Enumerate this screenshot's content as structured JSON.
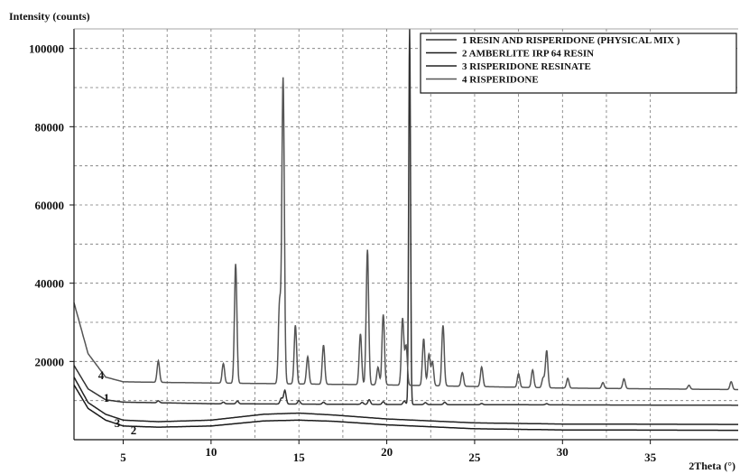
{
  "chart_data": {
    "type": "line",
    "ylabel": "Intensity (counts)",
    "xlabel": "2Theta (°)",
    "xlim": [
      2.2,
      40
    ],
    "ylim": [
      0,
      105000
    ],
    "x_ticks": [
      5,
      10,
      15,
      20,
      25,
      30,
      35
    ],
    "y_ticks": [
      20000,
      40000,
      60000,
      80000,
      100000
    ],
    "y_tick_labels": [
      "20000",
      "40000",
      "60000",
      "80000",
      "100000"
    ],
    "grid": true,
    "legend_position": "top-right",
    "series": [
      {
        "name": "1 RESIN AND RISPERIDONE (PHYSICAL MIX )",
        "curve_label": "1",
        "color": "#333333",
        "baseline": [
          [
            2.2,
            19000
          ],
          [
            3,
            13000
          ],
          [
            4,
            10200
          ],
          [
            5,
            9600
          ],
          [
            10,
            9200
          ],
          [
            20,
            9000
          ],
          [
            40,
            8800
          ]
        ],
        "peaks": [
          [
            7.0,
            500
          ],
          [
            10.7,
            400
          ],
          [
            11.5,
            700
          ],
          [
            14.0,
            1500
          ],
          [
            14.2,
            3500
          ],
          [
            15.0,
            900
          ],
          [
            16.4,
            500
          ],
          [
            18.6,
            500
          ],
          [
            19.0,
            1200
          ],
          [
            19.8,
            700
          ],
          [
            21.0,
            900
          ],
          [
            21.3,
            96000
          ],
          [
            22.2,
            500
          ],
          [
            23.3,
            600
          ],
          [
            25.4,
            300
          ],
          [
            29.1,
            300
          ]
        ]
      },
      {
        "name": "2 AMBERLITE IRP 64 RESIN",
        "curve_label": "2",
        "color": "#1a1a1a",
        "baseline": [
          [
            2.2,
            14000
          ],
          [
            3,
            8000
          ],
          [
            4,
            5000
          ],
          [
            5,
            3500
          ],
          [
            7,
            3200
          ],
          [
            10,
            3500
          ],
          [
            13,
            4800
          ],
          [
            15,
            5000
          ],
          [
            17,
            4700
          ],
          [
            20,
            3800
          ],
          [
            25,
            2800
          ],
          [
            30,
            2500
          ],
          [
            40,
            2400
          ]
        ],
        "peaks": []
      },
      {
        "name": "3 RISPERIDONE RESINATE",
        "curve_label": "3",
        "color": "#222222",
        "baseline": [
          [
            2.2,
            16000
          ],
          [
            3,
            9500
          ],
          [
            4,
            6500
          ],
          [
            5,
            5000
          ],
          [
            7,
            4600
          ],
          [
            10,
            5000
          ],
          [
            13,
            6500
          ],
          [
            15,
            6800
          ],
          [
            17,
            6300
          ],
          [
            20,
            5300
          ],
          [
            25,
            4300
          ],
          [
            30,
            4000
          ],
          [
            40,
            3900
          ]
        ],
        "peaks": []
      },
      {
        "name": "4 RISPERIDONE",
        "curve_label": "4",
        "color": "#555555",
        "baseline": [
          [
            2.2,
            35000
          ],
          [
            3,
            22000
          ],
          [
            4,
            16000
          ],
          [
            5,
            14800
          ],
          [
            8,
            14600
          ],
          [
            12,
            14400
          ],
          [
            20,
            14000
          ],
          [
            30,
            13200
          ],
          [
            40,
            12800
          ]
        ],
        "peaks": [
          [
            7.0,
            5500
          ],
          [
            10.7,
            5000
          ],
          [
            11.4,
            30500
          ],
          [
            13.9,
            20500
          ],
          [
            14.1,
            78000
          ],
          [
            14.8,
            15000
          ],
          [
            15.5,
            7000
          ],
          [
            16.4,
            10000
          ],
          [
            18.5,
            13000
          ],
          [
            18.9,
            34500
          ],
          [
            19.5,
            4500
          ],
          [
            19.8,
            18000
          ],
          [
            20.9,
            17000
          ],
          [
            21.1,
            10000
          ],
          [
            22.1,
            12000
          ],
          [
            22.4,
            8000
          ],
          [
            22.6,
            6000
          ],
          [
            23.2,
            15500
          ],
          [
            24.3,
            3500
          ],
          [
            25.4,
            5000
          ],
          [
            27.5,
            3500
          ],
          [
            28.3,
            4500
          ],
          [
            28.9,
            2500
          ],
          [
            29.1,
            9500
          ],
          [
            30.3,
            2500
          ],
          [
            32.3,
            1500
          ],
          [
            33.5,
            2500
          ],
          [
            37.2,
            1000
          ],
          [
            39.6,
            2000
          ]
        ]
      }
    ]
  }
}
